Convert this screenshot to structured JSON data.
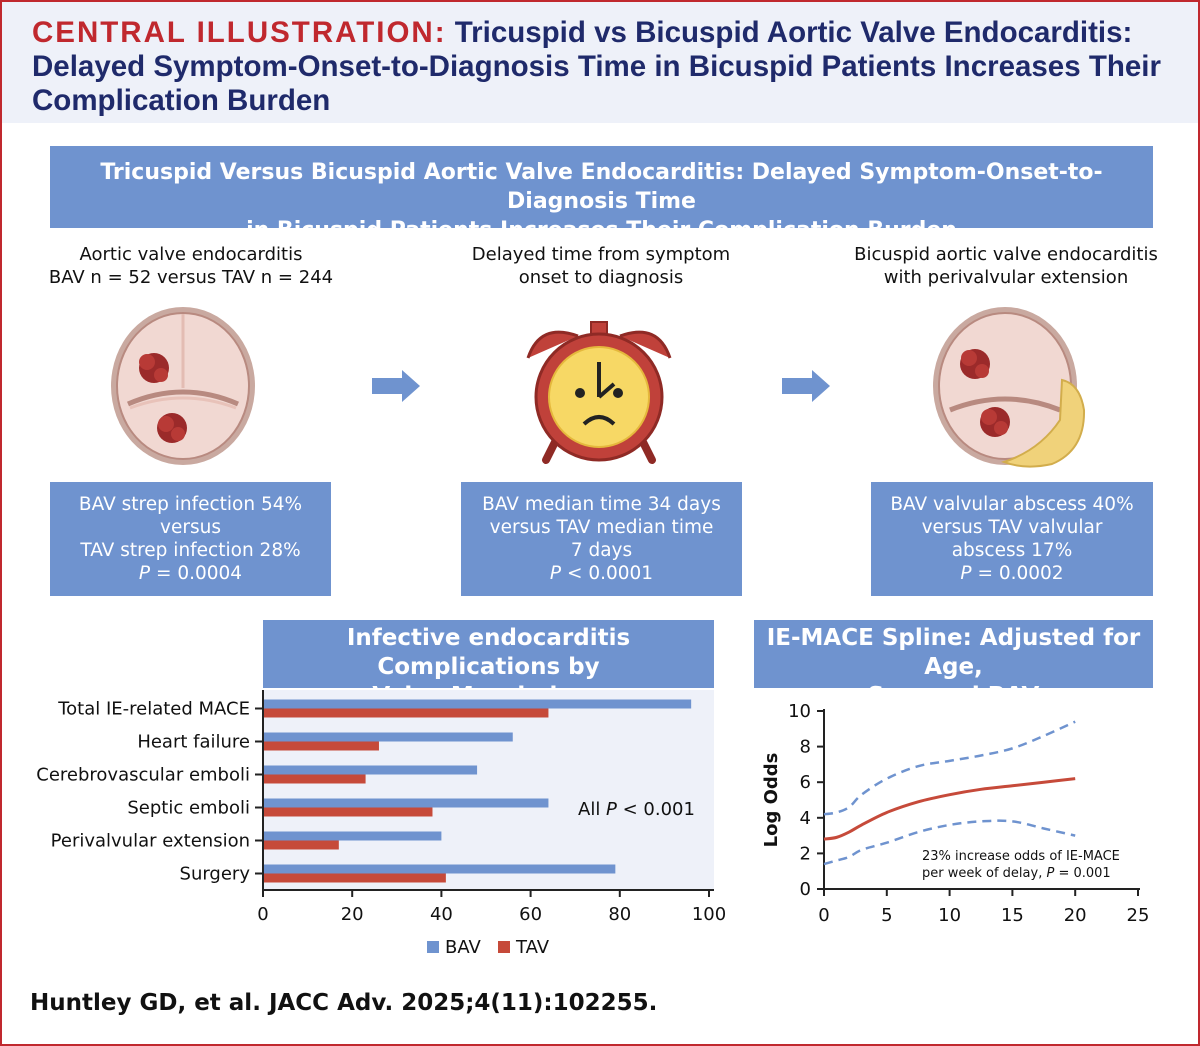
{
  "header": {
    "label": "CENTRAL ILLUSTRATION:",
    "title": "Tricuspid vs Bicuspid Aortic Valve Endocarditis: Delayed Symptom-Onset-to-Diagnosis Time in Bicuspid Patients Increases Their Complication Burden"
  },
  "banner": {
    "line1": "Tricuspid Versus Bicuspid Aortic Valve Endocarditis: Delayed Symptom-Onset-to-Diagnosis Time",
    "line2": "in Bicuspid Patients Increases Their Complication Burden"
  },
  "columns": [
    {
      "title1": "Aortic valve endocarditis",
      "title2": "BAV n = 52 versus TAV n = 244",
      "lines": [
        "BAV strep infection 54%",
        "versus",
        "TAV strep infection 28%"
      ],
      "p_label": "P",
      "p_value": "= 0.0004"
    },
    {
      "title1": "Delayed time from symptom",
      "title2": "onset to diagnosis",
      "lines": [
        "BAV median time 34 days",
        "versus TAV median time",
        "7 days"
      ],
      "p_label": "P",
      "p_value": "< 0.0001"
    },
    {
      "title1": "Bicuspid aortic valve endocarditis",
      "title2": "with perivalvular extension",
      "lines": [
        "BAV valvular abscess 40%",
        "versus TAV valvular",
        "abscess 17%"
      ],
      "p_label": "P",
      "p_value": "= 0.0002"
    }
  ],
  "icons": {
    "tav": "aortic-valve-vegetation",
    "clock": "alarm-clock-sad",
    "bav": "bicuspid-valve-abscess",
    "arrow": "right-arrow"
  },
  "colors": {
    "bav": "#6f93cf",
    "tav": "#c64a3a",
    "accent": "#c0282e",
    "navy": "#1f2a6b"
  },
  "chart_data": [
    {
      "type": "bar",
      "orientation": "horizontal",
      "title1": "Infective endocarditis Complications by",
      "title2": "Valve Morphology",
      "categories": [
        "Total IE-related MACE",
        "Heart failure",
        "Cerebrovascular emboli",
        "Septic emboli",
        "Perivalvular extension",
        "Surgery"
      ],
      "series": [
        {
          "name": "BAV",
          "values": [
            96,
            56,
            48,
            64,
            40,
            79
          ]
        },
        {
          "name": "TAV",
          "values": [
            64,
            26,
            23,
            38,
            17,
            41
          ]
        }
      ],
      "xlim": [
        0,
        100
      ],
      "xticks": [
        "0",
        "20",
        "40",
        "60",
        "80",
        "100"
      ],
      "annotation": {
        "prefix": "All ",
        "p": "P",
        "rest": " < 0.001"
      },
      "legend": "bottom"
    },
    {
      "type": "line",
      "title1": "IE-MACE Spline: Adjusted for Age,",
      "title2": "Sex, and BAV",
      "ylabel": "Log Odds",
      "xlim": [
        0,
        25
      ],
      "ylim": [
        0,
        10
      ],
      "xticks": [
        "0",
        "5",
        "10",
        "15",
        "20",
        "25"
      ],
      "yticks": [
        "0",
        "2",
        "4",
        "6",
        "8",
        "10"
      ],
      "series": [
        {
          "name": "estimate",
          "x": [
            0,
            1,
            2,
            3,
            5,
            7.5,
            10,
            12.5,
            15,
            17.5,
            20
          ],
          "y": [
            2.8,
            2.9,
            3.2,
            3.6,
            4.3,
            4.9,
            5.3,
            5.6,
            5.8,
            6.0,
            6.2
          ]
        },
        {
          "name": "upper",
          "x": [
            0,
            1,
            2,
            3,
            5,
            7.5,
            10,
            12.5,
            15,
            17.5,
            20
          ],
          "y": [
            4.2,
            4.3,
            4.6,
            5.3,
            6.2,
            6.9,
            7.2,
            7.5,
            7.9,
            8.6,
            9.4
          ]
        },
        {
          "name": "lower",
          "x": [
            0,
            1,
            2,
            3,
            5,
            7.5,
            10,
            12.5,
            15,
            17.5,
            20
          ],
          "y": [
            1.4,
            1.6,
            1.8,
            2.2,
            2.6,
            3.2,
            3.6,
            3.8,
            3.8,
            3.4,
            3.0
          ]
        }
      ],
      "annotation1": "23% increase odds of IE-MACE",
      "annotation2_prefix": "per week of delay, ",
      "annotation2_p": "P",
      "annotation2_rest": " = 0.001"
    }
  ],
  "citation": "Huntley GD, et al. JACC Adv. 2025;4(11):102255."
}
